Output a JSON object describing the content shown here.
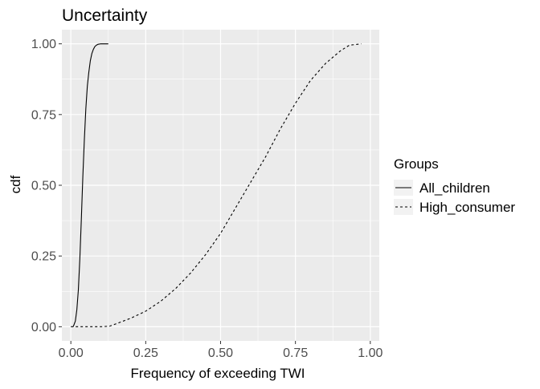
{
  "chart_data": {
    "type": "line",
    "title": "Uncertainty",
    "xlabel": "Frequency of exceeding TWI",
    "ylabel": "cdf",
    "xlim": [
      -0.03,
      1.03
    ],
    "ylim": [
      -0.05,
      1.05
    ],
    "x_ticks": [
      0.0,
      0.25,
      0.5,
      0.75,
      1.0
    ],
    "x_tick_labels": [
      "0.00",
      "0.25",
      "0.50",
      "0.75",
      "1.00"
    ],
    "y_ticks": [
      0.0,
      0.25,
      0.5,
      0.75,
      1.0
    ],
    "y_tick_labels": [
      "0.00",
      "0.25",
      "0.50",
      "0.75",
      "1.00"
    ],
    "grid": true,
    "legend": {
      "title": "Groups",
      "position": "right"
    },
    "series": [
      {
        "name": "All_children",
        "line_style": "solid",
        "color": "#000000",
        "x": [
          0.008,
          0.015,
          0.02,
          0.025,
          0.03,
          0.035,
          0.04,
          0.045,
          0.05,
          0.055,
          0.06,
          0.065,
          0.07,
          0.075,
          0.08,
          0.085,
          0.09,
          0.1,
          0.11,
          0.125
        ],
        "y": [
          0.0,
          0.02,
          0.06,
          0.13,
          0.24,
          0.38,
          0.53,
          0.66,
          0.77,
          0.85,
          0.9,
          0.94,
          0.965,
          0.98,
          0.99,
          0.995,
          0.998,
          1.0,
          1.0,
          1.0
        ]
      },
      {
        "name": "High_consumer",
        "line_style": "dashed",
        "color": "#000000",
        "x": [
          0.0,
          0.05,
          0.1,
          0.13,
          0.15,
          0.2,
          0.25,
          0.3,
          0.35,
          0.4,
          0.45,
          0.5,
          0.55,
          0.6,
          0.65,
          0.7,
          0.75,
          0.8,
          0.85,
          0.9,
          0.93,
          0.97
        ],
        "y": [
          0.0,
          0.0,
          0.0,
          0.002,
          0.01,
          0.03,
          0.055,
          0.09,
          0.135,
          0.19,
          0.255,
          0.33,
          0.42,
          0.51,
          0.6,
          0.7,
          0.79,
          0.87,
          0.93,
          0.975,
          0.995,
          1.0
        ]
      }
    ],
    "colors": {
      "panel_background": "#ebebeb",
      "grid_major": "#ffffff",
      "legend_key_background": "#f2f2f2"
    }
  }
}
